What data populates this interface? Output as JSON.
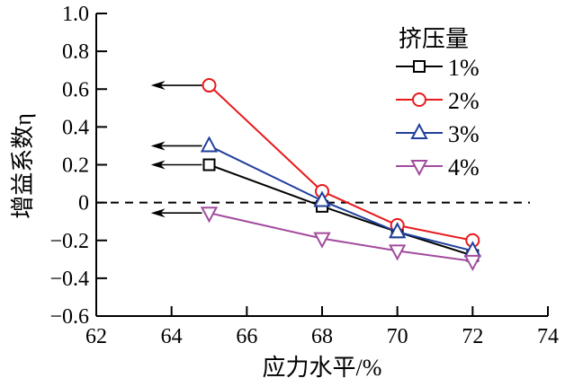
{
  "chart_data": {
    "type": "line",
    "title": "",
    "xlabel": "应力水平/%",
    "ylabel": "增益系数η",
    "xlim": [
      62,
      74
    ],
    "ylim": [
      -0.6,
      1.0
    ],
    "xticks": [
      "62",
      "64",
      "66",
      "68",
      "70",
      "72",
      "74"
    ],
    "yticks": [
      "−0.6",
      "−0.4",
      "−0.2",
      "0",
      "0.2",
      "0.4",
      "0.6",
      "0.8",
      "1.0"
    ],
    "x": [
      65,
      68,
      70,
      72
    ],
    "legend_title": "挤压量",
    "legend_position": "top-right",
    "series": [
      {
        "name": "1%",
        "color": "#000000",
        "marker": "square",
        "values": [
          0.2,
          -0.02,
          -0.155,
          -0.28
        ]
      },
      {
        "name": "2%",
        "color": "#e8191c",
        "marker": "circle",
        "values": [
          0.62,
          0.06,
          -0.12,
          -0.2
        ]
      },
      {
        "name": "3%",
        "color": "#1f3f9a",
        "marker": "triangle-up",
        "values": [
          0.3,
          0.01,
          -0.155,
          -0.255
        ]
      },
      {
        "name": "4%",
        "color": "#a24b9e",
        "marker": "triangle-down",
        "values": [
          -0.055,
          -0.19,
          -0.255,
          -0.31
        ]
      }
    ],
    "reference_line": {
      "y": 0,
      "style": "dashed"
    },
    "arrows": [
      {
        "y": 0.62,
        "from_x": 65,
        "to_x": 63.45
      },
      {
        "y": 0.3,
        "from_x": 65,
        "to_x": 63.45
      },
      {
        "y": 0.2,
        "from_x": 65,
        "to_x": 63.45
      },
      {
        "y": -0.055,
        "from_x": 65,
        "to_x": 63.45
      }
    ]
  }
}
